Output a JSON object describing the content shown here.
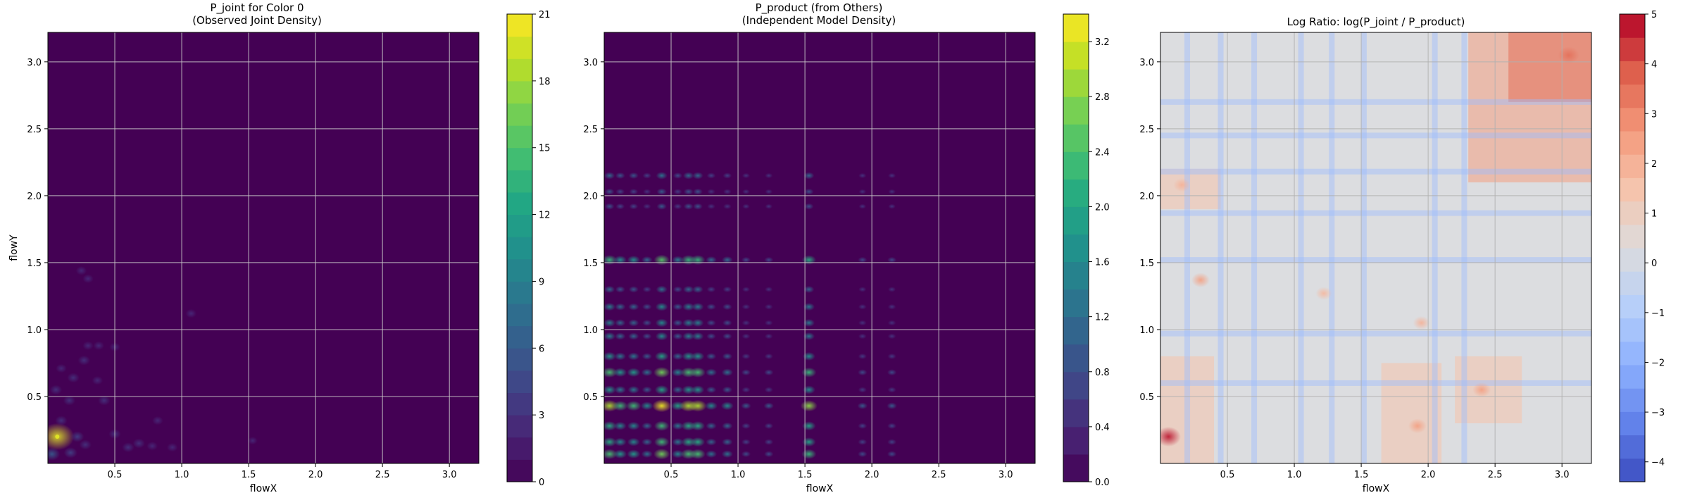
{
  "chart_data": [
    {
      "type": "heatmap",
      "title": "P_joint for Color 0\n(Observed Joint Density)",
      "xlabel": "flowX",
      "ylabel": "flowY",
      "xlim": [
        0.0,
        3.22
      ],
      "ylim": [
        0.0,
        3.22
      ],
      "x_ticks": [
        0.5,
        1.0,
        1.5,
        2.0,
        2.5,
        3.0
      ],
      "x_tick_labels": [
        "0.5",
        "1.0",
        "1.5",
        "2.0",
        "2.5",
        "3.0"
      ],
      "y_ticks": [
        0.5,
        1.0,
        1.5,
        2.0,
        2.5,
        3.0
      ],
      "y_tick_labels": [
        "0.5",
        "1.0",
        "1.5",
        "2.0",
        "2.5",
        "3.0"
      ],
      "grid": true,
      "colormap": "viridis",
      "background_color": "#440154",
      "colorbar": {
        "range": [
          0,
          21
        ],
        "ticks": [
          0,
          3,
          6,
          9,
          12,
          15,
          18,
          21
        ],
        "tick_labels": [
          "0",
          "3",
          "6",
          "9",
          "12",
          "15",
          "18",
          "21"
        ]
      },
      "hotspots": [
        {
          "x": 0.07,
          "y": 0.2,
          "value": 20
        },
        {
          "x": 0.03,
          "y": 0.07,
          "value": 6
        },
        {
          "x": 0.17,
          "y": 0.08,
          "value": 4
        },
        {
          "x": 0.22,
          "y": 0.2,
          "value": 4
        },
        {
          "x": 0.28,
          "y": 0.14,
          "value": 3
        },
        {
          "x": 0.1,
          "y": 0.32,
          "value": 3
        },
        {
          "x": 0.16,
          "y": 0.47,
          "value": 3
        },
        {
          "x": 0.06,
          "y": 0.55,
          "value": 3
        },
        {
          "x": 0.19,
          "y": 0.64,
          "value": 3
        },
        {
          "x": 0.1,
          "y": 0.71,
          "value": 2
        },
        {
          "x": 0.27,
          "y": 0.77,
          "value": 3
        },
        {
          "x": 0.37,
          "y": 0.62,
          "value": 2
        },
        {
          "x": 0.42,
          "y": 0.47,
          "value": 3
        },
        {
          "x": 0.5,
          "y": 0.22,
          "value": 3
        },
        {
          "x": 0.6,
          "y": 0.12,
          "value": 3
        },
        {
          "x": 0.68,
          "y": 0.15,
          "value": 3
        },
        {
          "x": 0.78,
          "y": 0.13,
          "value": 2
        },
        {
          "x": 0.93,
          "y": 0.12,
          "value": 2
        },
        {
          "x": 0.82,
          "y": 0.32,
          "value": 2
        },
        {
          "x": 0.3,
          "y": 0.88,
          "value": 2
        },
        {
          "x": 0.38,
          "y": 0.88,
          "value": 2
        },
        {
          "x": 0.5,
          "y": 0.87,
          "value": 2
        },
        {
          "x": 1.07,
          "y": 1.12,
          "value": 2
        },
        {
          "x": 0.25,
          "y": 1.44,
          "value": 2
        },
        {
          "x": 0.3,
          "y": 1.38,
          "value": 2
        },
        {
          "x": 1.53,
          "y": 0.17,
          "value": 1
        }
      ]
    },
    {
      "type": "heatmap",
      "title": "P_product (from Others)\n(Independent Model Density)",
      "xlabel": "flowX",
      "ylabel": "",
      "xlim": [
        0.0,
        3.22
      ],
      "ylim": [
        0.0,
        3.22
      ],
      "x_ticks": [
        0.5,
        1.0,
        1.5,
        2.0,
        2.5,
        3.0
      ],
      "x_tick_labels": [
        "0.5",
        "1.0",
        "1.5",
        "2.0",
        "2.5",
        "3.0"
      ],
      "y_ticks": [
        0.5,
        1.0,
        1.5,
        2.0,
        2.5,
        3.0
      ],
      "y_tick_labels": [
        "0.5",
        "1.0",
        "1.5",
        "2.0",
        "2.5",
        "3.0"
      ],
      "grid": true,
      "colormap": "viridis",
      "background_color": "#440154",
      "colorbar": {
        "range": [
          0,
          3.4
        ],
        "ticks": [
          0.0,
          0.4,
          0.8,
          1.2,
          1.6,
          2.0,
          2.4,
          2.8,
          3.2
        ],
        "tick_labels": [
          "0.0",
          "0.4",
          "0.8",
          "1.2",
          "1.6",
          "2.0",
          "2.4",
          "2.8",
          "3.2"
        ]
      },
      "x_marginal": [
        {
          "x": 0.04,
          "w": 0.9
        },
        {
          "x": 0.12,
          "w": 0.7
        },
        {
          "x": 0.22,
          "w": 0.7
        },
        {
          "x": 0.32,
          "w": 0.5
        },
        {
          "x": 0.43,
          "w": 1.0
        },
        {
          "x": 0.55,
          "w": 0.6
        },
        {
          "x": 0.63,
          "w": 0.9
        },
        {
          "x": 0.7,
          "w": 0.9
        },
        {
          "x": 0.8,
          "w": 0.5
        },
        {
          "x": 0.92,
          "w": 0.5
        },
        {
          "x": 1.06,
          "w": 0.3
        },
        {
          "x": 1.23,
          "w": 0.3
        },
        {
          "x": 1.53,
          "w": 0.85
        },
        {
          "x": 1.93,
          "w": 0.3
        },
        {
          "x": 2.15,
          "w": 0.3
        }
      ],
      "y_marginal": [
        {
          "y": 0.07,
          "w": 0.8
        },
        {
          "y": 0.16,
          "w": 0.7
        },
        {
          "y": 0.28,
          "w": 0.7
        },
        {
          "y": 0.43,
          "w": 1.0
        },
        {
          "y": 0.55,
          "w": 0.6
        },
        {
          "y": 0.68,
          "w": 0.8
        },
        {
          "y": 0.8,
          "w": 0.6
        },
        {
          "y": 0.95,
          "w": 0.5
        },
        {
          "y": 1.05,
          "w": 0.5
        },
        {
          "y": 1.17,
          "w": 0.5
        },
        {
          "y": 1.3,
          "w": 0.4
        },
        {
          "y": 1.52,
          "w": 0.75
        },
        {
          "y": 1.92,
          "w": 0.3
        },
        {
          "y": 2.03,
          "w": 0.3
        },
        {
          "y": 2.15,
          "w": 0.4
        }
      ]
    },
    {
      "type": "heatmap",
      "title": "Log Ratio: log(P_joint / P_product)",
      "xlabel": "flowX",
      "ylabel": "",
      "xlim": [
        0.0,
        3.22
      ],
      "ylim": [
        0.0,
        3.22
      ],
      "x_ticks": [
        0.5,
        1.0,
        1.5,
        2.0,
        2.5,
        3.0
      ],
      "x_tick_labels": [
        "0.5",
        "1.0",
        "1.5",
        "2.0",
        "2.5",
        "3.0"
      ],
      "y_ticks": [
        0.5,
        1.0,
        1.5,
        2.0,
        2.5,
        3.0
      ],
      "y_tick_labels": [
        "0.5",
        "1.0",
        "1.5",
        "2.0",
        "2.5",
        "3.0"
      ],
      "grid": true,
      "colormap": "coolwarm",
      "background_color": "#dcdde0",
      "colorbar": {
        "range": [
          -4.4,
          5.0
        ],
        "ticks": [
          -4,
          -3,
          -2,
          -1,
          0,
          1,
          2,
          3,
          4,
          5
        ],
        "tick_labels": [
          "−4",
          "−3",
          "−2",
          "−1",
          "0",
          "1",
          "2",
          "3",
          "4",
          "5"
        ]
      },
      "blue_lines_x": [
        0.2,
        0.45,
        0.7,
        1.05,
        1.28,
        1.52,
        2.05,
        2.27
      ],
      "blue_lines_y": [
        0.6,
        0.97,
        1.52,
        1.87,
        2.18,
        2.45,
        2.7
      ],
      "red_zones": [
        {
          "x0": 2.3,
          "x1": 3.22,
          "y0": 2.1,
          "y1": 3.22,
          "value": 2.5
        },
        {
          "x0": 2.6,
          "x1": 3.22,
          "y0": 2.7,
          "y1": 3.22,
          "value": 3.5
        },
        {
          "x0": 0.0,
          "x1": 0.45,
          "y0": 1.9,
          "y1": 2.2,
          "value": 1.5
        },
        {
          "x0": 0.0,
          "x1": 0.4,
          "y0": 0.0,
          "y1": 0.8,
          "value": 1.5
        },
        {
          "x0": 1.65,
          "x1": 2.1,
          "y0": 0.0,
          "y1": 0.75,
          "value": 1.5
        },
        {
          "x0": 2.2,
          "x1": 2.7,
          "y0": 0.3,
          "y1": 0.8,
          "value": 1.5
        }
      ],
      "spots": [
        {
          "x": 0.06,
          "y": 0.2,
          "value": 4.8
        },
        {
          "x": 0.3,
          "y": 1.37,
          "value": 2.5
        },
        {
          "x": 1.92,
          "y": 0.28,
          "value": 2.5
        },
        {
          "x": 2.4,
          "y": 0.55,
          "value": 2.5
        },
        {
          "x": 1.95,
          "y": 1.05,
          "value": 2.0
        },
        {
          "x": 0.16,
          "y": 2.08,
          "value": 2.0
        },
        {
          "x": 1.22,
          "y": 1.27,
          "value": 1.8
        },
        {
          "x": 3.05,
          "y": 3.05,
          "value": 3.5
        }
      ]
    }
  ]
}
